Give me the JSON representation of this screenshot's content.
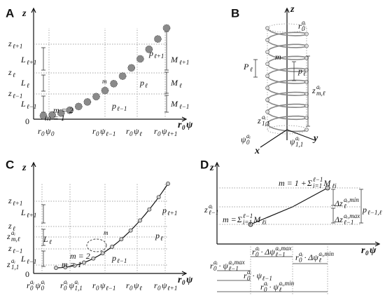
{
  "panels": [
    {
      "letter": "A",
      "labels": [
        [
          [
            "z"
          ]
        ],
        [
          [
            "0"
          ]
        ],
        [
          [
            "z",
            "ℓ+1"
          ]
        ],
        [
          [
            "L",
            "ℓ+1"
          ]
        ],
        [
          [
            "z",
            "ℓ"
          ]
        ],
        [
          [
            "L",
            "ℓ"
          ]
        ],
        [
          [
            "z",
            "ℓ−1"
          ]
        ],
        [
          [
            "L",
            "ℓ−1"
          ]
        ],
        [
          [
            "M",
            "ℓ+1"
          ]
        ],
        [
          [
            "M",
            "ℓ"
          ]
        ],
        [
          [
            "M",
            "ℓ−1"
          ]
        ],
        [
          [
            "p",
            "ℓ+1"
          ]
        ],
        [
          [
            "p",
            "ℓ"
          ]
        ],
        [
          [
            "p",
            "ℓ−1"
          ]
        ],
        [
          [
            "m = 2"
          ]
        ],
        [
          [
            "m = 1"
          ]
        ],
        [
          [
            "m"
          ]
        ],
        [
          [
            "r",
            "0"
          ],
          [
            "ψ",
            "0"
          ]
        ],
        [
          [
            "r",
            "0"
          ],
          [
            "ψ",
            "ℓ−1"
          ]
        ],
        [
          [
            "r",
            "0"
          ],
          [
            "ψ",
            "ℓ"
          ]
        ],
        [
          [
            "r",
            "0"
          ],
          [
            "ψ",
            "ℓ+1"
          ]
        ],
        [
          [
            "r",
            "0"
          ],
          [
            "ψ"
          ]
        ]
      ]
    },
    {
      "letter": "B",
      "labels": [
        [
          [
            "z"
          ]
        ],
        [
          [
            "r",
            "0",
            "aᵢ"
          ]
        ],
        [
          [
            "m"
          ]
        ],
        [
          [
            "P",
            "ℓ"
          ]
        ],
        [
          [
            "p",
            "ℓ"
          ]
        ],
        [
          [
            "z",
            "m,ℓ",
            "aᵢ"
          ]
        ],
        [
          [
            "z",
            "1,1",
            "aᵢ"
          ]
        ],
        [
          [
            "ψ",
            "0",
            "aᵢ"
          ]
        ],
        [
          [
            "ψ",
            "1,1",
            "aᵢ"
          ]
        ],
        [
          [
            "y"
          ]
        ],
        [
          [
            "x"
          ]
        ]
      ]
    },
    {
      "letter": "C",
      "labels": [
        [
          [
            "z"
          ]
        ],
        [
          [
            "0"
          ]
        ],
        [
          [
            "z",
            "ℓ+1"
          ]
        ],
        [
          [
            "L",
            "ℓ+1"
          ]
        ],
        [
          [
            "z",
            "ℓ"
          ]
        ],
        [
          [
            "z",
            "m,ℓ",
            "aᵢ"
          ]
        ],
        [
          [
            "L",
            "ℓ"
          ]
        ],
        [
          [
            "z",
            "ℓ−1"
          ]
        ],
        [
          [
            "L",
            "ℓ−1"
          ]
        ],
        [
          [
            "z",
            "1,1",
            "aᵢ"
          ]
        ],
        [
          [
            "p",
            "ℓ+1"
          ]
        ],
        [
          [
            "p",
            "ℓ"
          ]
        ],
        [
          [
            "p",
            "ℓ−1"
          ]
        ],
        [
          [
            "m = 2"
          ]
        ],
        [
          [
            "m = 1"
          ]
        ],
        [
          [
            "m"
          ]
        ],
        [
          [
            "r",
            "0",
            "aᵢ"
          ],
          [
            "ψ",
            "0",
            "aᵢ"
          ]
        ],
        [
          [
            "r",
            "0",
            "aᵢ"
          ],
          [
            "ψ",
            "1,1",
            "aᵢ"
          ]
        ],
        [
          [
            "r",
            "0"
          ],
          [
            "ψ",
            "ℓ−1"
          ]
        ],
        [
          [
            "r",
            "0"
          ],
          [
            "ψ",
            "ℓ"
          ]
        ],
        [
          [
            "r",
            "0"
          ],
          [
            "ψ",
            "ℓ+1"
          ]
        ],
        [
          [
            "r",
            "0"
          ],
          [
            "ψ"
          ]
        ]
      ]
    },
    {
      "letter": "D",
      "labels": [
        [
          [
            "z"
          ]
        ],
        [
          [
            "z",
            "ℓ−1",
            "aᵢ"
          ]
        ],
        [
          [
            "m = "
          ],
          [
            "Σ",
            "i=1",
            "ℓ−1"
          ],
          [
            "M",
            "ℓi"
          ]
        ],
        [
          [
            "m = 1 + "
          ],
          [
            "Σ",
            "i=1",
            "ℓ−1"
          ],
          [
            "M",
            "ℓi"
          ]
        ],
        [
          [
            "Δz",
            "ℓ",
            "aᵢ,min"
          ]
        ],
        [
          [
            "Δz",
            "ℓ−1",
            "aᵢ,max"
          ]
        ],
        [
          [
            "p",
            "ℓ−1,ℓ"
          ]
        ],
        [
          [
            "r",
            "0",
            "aᵢ"
          ],
          [
            "· Δψ",
            "ℓ−1",
            "aᵢ,max"
          ]
        ],
        [
          [
            "r",
            "0",
            "aᵢ"
          ],
          [
            "· Δψ",
            "ℓ",
            "aᵢ,min"
          ]
        ],
        [
          [
            "r",
            "0",
            "aᵢ"
          ],
          [
            "· ψ",
            "ℓ−1",
            "aᵢ,max"
          ]
        ],
        [
          [
            "r",
            "0",
            "aᵢ"
          ],
          [
            "· ψ",
            "ℓ−1"
          ]
        ],
        [
          [
            "r",
            "0",
            "aᵢ"
          ],
          [
            "· ψ",
            "ℓ",
            "aᵢ,min"
          ]
        ],
        [
          [
            "r",
            "0"
          ],
          [
            "ψ"
          ]
        ]
      ]
    }
  ]
}
